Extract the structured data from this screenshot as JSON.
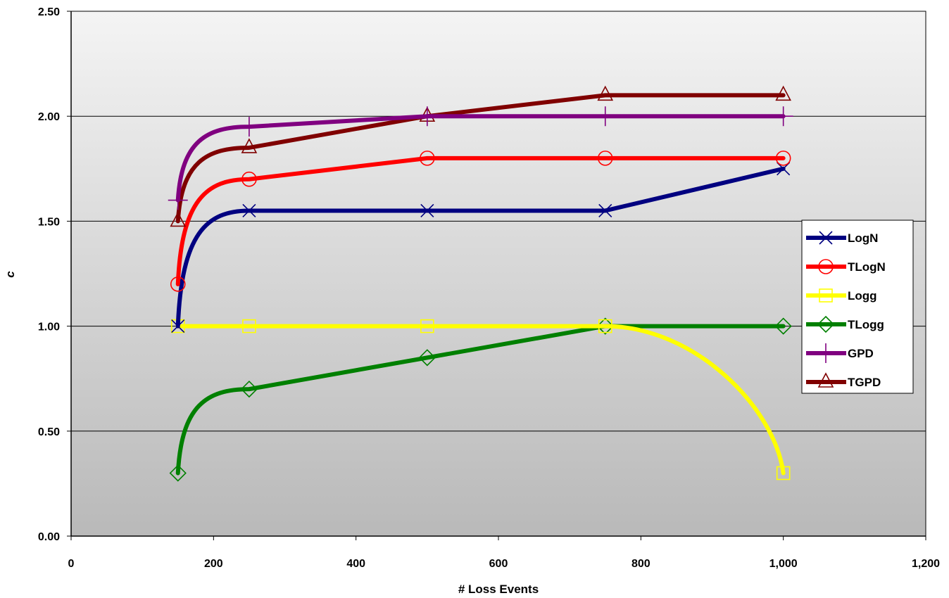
{
  "chart_data": {
    "type": "line",
    "title": "",
    "xlabel": "# Loss Events",
    "ylabel": "c",
    "xlim": [
      0,
      1200
    ],
    "ylim": [
      0,
      2.5
    ],
    "x_ticks": [
      "0",
      "200",
      "400",
      "600",
      "800",
      "1,000",
      "1,200"
    ],
    "y_ticks": [
      "0.00",
      "0.50",
      "1.00",
      "1.50",
      "2.00",
      "2.50"
    ],
    "grid": "horizontal major",
    "legend_position": "right",
    "plot_background": "gradient light gray to gray",
    "x": [
      150,
      250,
      500,
      750,
      1000
    ],
    "series": [
      {
        "name": "LogN",
        "values": [
          1.0,
          1.55,
          1.55,
          1.55,
          1.75
        ],
        "color": "#000080",
        "marker": "x"
      },
      {
        "name": "TLogN",
        "values": [
          1.2,
          1.7,
          1.8,
          1.8,
          1.8
        ],
        "color": "#ff0000",
        "marker": "circle"
      },
      {
        "name": "Logg",
        "values": [
          1.0,
          1.0,
          1.0,
          1.0,
          0.3
        ],
        "color": "#ffff00",
        "marker": "square"
      },
      {
        "name": "TLogg",
        "values": [
          0.3,
          0.7,
          0.85,
          1.0,
          1.0
        ],
        "color": "#008000",
        "marker": "diamond"
      },
      {
        "name": "GPD",
        "values": [
          1.6,
          1.95,
          2.0,
          2.0,
          2.0
        ],
        "color": "#800080",
        "marker": "plus"
      },
      {
        "name": "TGPD",
        "values": [
          1.5,
          1.85,
          2.0,
          2.1,
          2.1
        ],
        "color": "#800000",
        "marker": "triangle"
      }
    ]
  }
}
